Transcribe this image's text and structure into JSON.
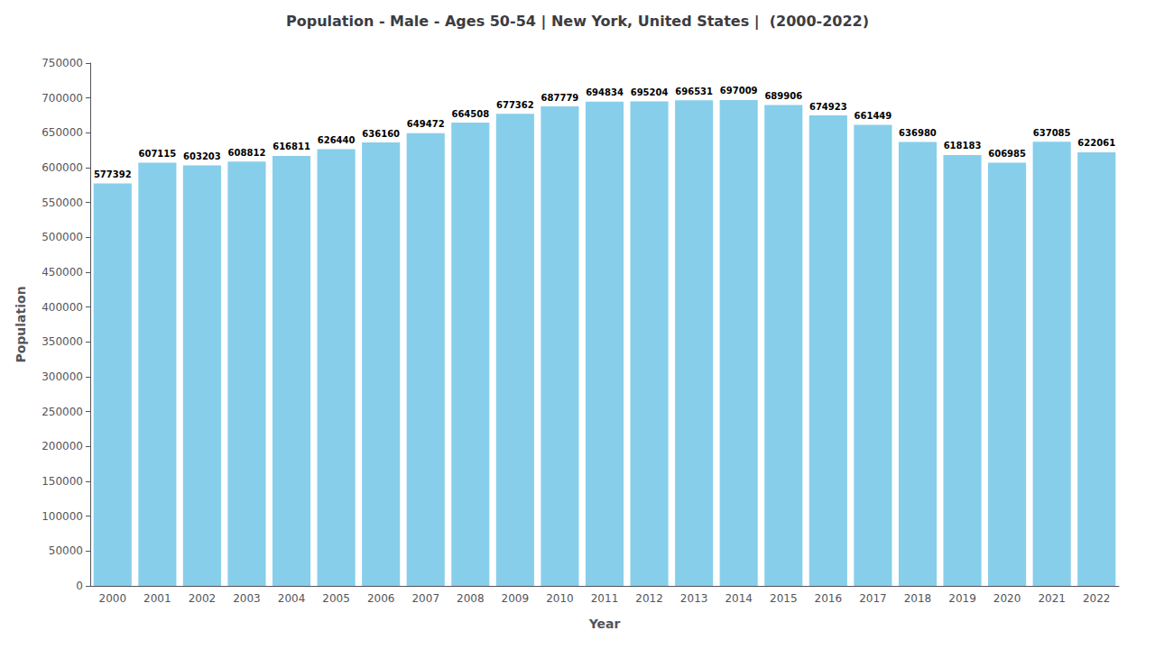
{
  "chart_data": {
    "type": "bar",
    "title": "Population - Male - Ages 50-54 | New York, United States |  (2000-2022)",
    "xlabel": "Year",
    "ylabel": "Population",
    "categories": [
      "2000",
      "2001",
      "2002",
      "2003",
      "2004",
      "2005",
      "2006",
      "2007",
      "2008",
      "2009",
      "2010",
      "2011",
      "2012",
      "2013",
      "2014",
      "2015",
      "2016",
      "2017",
      "2018",
      "2019",
      "2020",
      "2021",
      "2022"
    ],
    "values": [
      577392,
      607115,
      603203,
      608812,
      616811,
      626440,
      636160,
      649472,
      664508,
      677362,
      687779,
      694834,
      695204,
      696531,
      697009,
      689906,
      674923,
      661449,
      636980,
      618183,
      606985,
      637085,
      622061
    ],
    "color": "#87ceeb",
    "ylim": [
      0,
      750000
    ],
    "yticks": [
      0,
      50000,
      100000,
      150000,
      200000,
      250000,
      300000,
      350000,
      400000,
      450000,
      500000,
      550000,
      600000,
      650000,
      700000,
      750000
    ],
    "data_labels": true,
    "grid": false
  }
}
